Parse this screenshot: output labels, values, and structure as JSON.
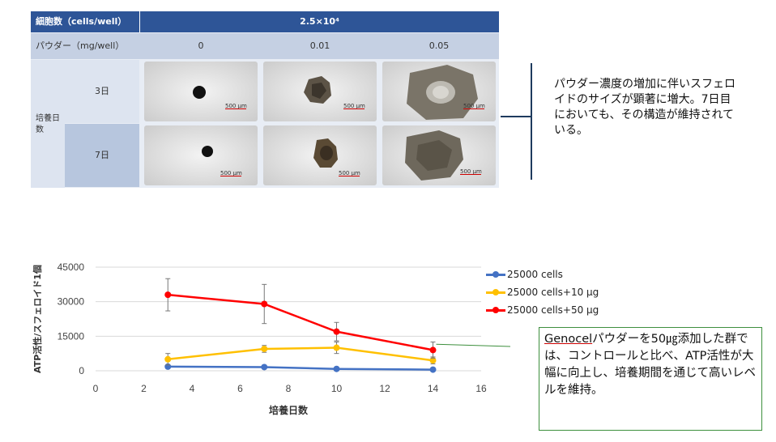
{
  "table": {
    "cell_count_label": "細胞数（cells/well）",
    "cell_count_value": "2.5×10⁴",
    "powder_label": "パウダー（mg/well）",
    "powder_levels": [
      "0",
      "0.01",
      "0.05"
    ],
    "culture_days_label": "培養日数",
    "days": [
      "3日",
      "7日"
    ],
    "scale_label": "500 μm"
  },
  "note_top": "パウダー濃度の増加に伴いスフェロイドのサイズが顕著に増大。7日目においても、その構造が維持されている。",
  "callout": {
    "term": "Genocel",
    "text_after_term": "パウダーを50㎍添加した群では、コントロールと比べ、ATP活性が大幅に向上し、培養期間を通じて高いレベルを維持。"
  },
  "chart_data": {
    "type": "line",
    "title": "",
    "xlabel": "培養日数",
    "ylabel": "ATP活性/スフェロイド1個",
    "xlim": [
      0,
      16
    ],
    "ylim": [
      0,
      45000
    ],
    "xticks": [
      0,
      2,
      4,
      6,
      8,
      10,
      12,
      14,
      16
    ],
    "yticks": [
      0,
      15000,
      30000,
      45000
    ],
    "grid": true,
    "legend_position": "right",
    "x": [
      3,
      7,
      10,
      14
    ],
    "series": [
      {
        "name": "25000 cells",
        "color": "#4472c4",
        "values": [
          1800,
          1600,
          800,
          500
        ],
        "errors": [
          0,
          0,
          0,
          0
        ]
      },
      {
        "name": "25000 cells+10 µg",
        "color": "#ffc000",
        "values": [
          5000,
          9500,
          10000,
          4500
        ],
        "errors": [
          2500,
          1500,
          2500,
          1500
        ]
      },
      {
        "name": "25000 cells+50 µg",
        "color": "#ff0000",
        "values": [
          33000,
          29000,
          17000,
          9000
        ],
        "errors": [
          7000,
          8500,
          4000,
          3500
        ]
      }
    ]
  }
}
